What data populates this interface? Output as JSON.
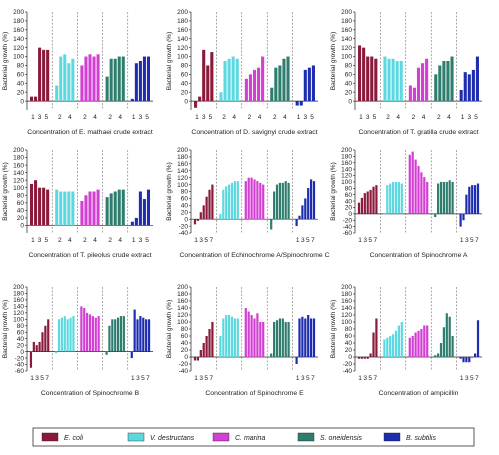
{
  "colors": {
    "E. coli": "#8B1A3A",
    "V. destructans": "#5CD9E0",
    "C. marina": "#D23FD2",
    "S. oneidensis": "#2E7D6E",
    "B. subtilis": "#1E2DB0"
  },
  "legend": [
    {
      "label": "E. coli",
      "key": "E. coli"
    },
    {
      "label": "V. destructans",
      "key": "V. destructans"
    },
    {
      "label": "C. marina",
      "key": "C. marina"
    },
    {
      "label": "S. oneidensis",
      "key": "S. oneidensis"
    },
    {
      "label": "B. subtilis",
      "key": "B. subtilis"
    }
  ],
  "chart_data": [
    {
      "type": "bar",
      "xlabel": "Concentration of E. mathaei crude extract",
      "ylabel": "Bacterial growth (%)",
      "ylim": [
        -20,
        200
      ],
      "yticks": [
        0,
        20,
        40,
        60,
        80,
        100,
        120,
        140,
        160,
        180,
        200
      ],
      "tick_labels": [
        [
          "1",
          "3",
          "5"
        ],
        [
          "2",
          "4"
        ],
        [
          "2",
          "4"
        ],
        [
          "2",
          "4"
        ],
        [
          "1",
          "3",
          "5"
        ]
      ],
      "series": [
        {
          "name": "E. coli",
          "values": [
            10,
            10,
            120,
            115,
            115
          ]
        },
        {
          "name": "V. destructans",
          "values": [
            35,
            100,
            105,
            85,
            95
          ]
        },
        {
          "name": "C. marina",
          "values": [
            80,
            100,
            105,
            100,
            105
          ]
        },
        {
          "name": "S. oneidensis",
          "values": [
            55,
            95,
            95,
            100,
            100
          ]
        },
        {
          "name": "B. subtilis",
          "values": [
            5,
            85,
            90,
            100,
            100
          ]
        }
      ]
    },
    {
      "type": "bar",
      "xlabel": "Concentration of D. savignyi crude extract",
      "ylabel": "Bacterial growth (%)",
      "ylim": [
        -20,
        200
      ],
      "yticks": [
        0,
        20,
        40,
        60,
        80,
        100,
        120,
        140,
        160,
        180,
        200
      ],
      "tick_labels": [
        [
          "1",
          "3",
          "5"
        ],
        [
          "2",
          "4"
        ],
        [
          "2",
          "4"
        ],
        [
          "2",
          "4"
        ],
        [
          "1",
          "3",
          "5"
        ]
      ],
      "series": [
        {
          "name": "E. coli",
          "values": [
            -15,
            10,
            115,
            80,
            110
          ]
        },
        {
          "name": "V. destructans",
          "values": [
            20,
            90,
            95,
            100,
            95
          ]
        },
        {
          "name": "C. marina",
          "values": [
            50,
            60,
            70,
            75,
            100
          ]
        },
        {
          "name": "S. oneidensis",
          "values": [
            30,
            75,
            80,
            95,
            100
          ]
        },
        {
          "name": "B. subtilis",
          "values": [
            -10,
            -10,
            70,
            75,
            80
          ]
        }
      ]
    },
    {
      "type": "bar",
      "xlabel": "Concentration of T. gratilla crude extract",
      "ylabel": "Bacterial growth (%)",
      "ylim": [
        -20,
        200
      ],
      "yticks": [
        0,
        20,
        40,
        60,
        80,
        100,
        120,
        140,
        160,
        180,
        200
      ],
      "tick_labels": [
        [
          "1",
          "3",
          "5"
        ],
        [
          "2",
          "4"
        ],
        [
          "2",
          "4"
        ],
        [
          "2",
          "4"
        ],
        [
          "1",
          "3",
          "5"
        ]
      ],
      "series": [
        {
          "name": "E. coli",
          "values": [
            125,
            120,
            100,
            100,
            95
          ]
        },
        {
          "name": "V. destructans",
          "values": [
            100,
            95,
            95,
            90,
            90
          ]
        },
        {
          "name": "C. marina",
          "values": [
            35,
            30,
            75,
            85,
            95
          ]
        },
        {
          "name": "S. oneidensis",
          "values": [
            60,
            80,
            90,
            90,
            100
          ]
        },
        {
          "name": "B. subtilis",
          "values": [
            25,
            65,
            60,
            70,
            100
          ]
        }
      ]
    },
    {
      "type": "bar",
      "xlabel": "Concentration of T. pileolus crude extract",
      "ylabel": "Bacterial growth (%)",
      "ylim": [
        -20,
        200
      ],
      "yticks": [
        0,
        20,
        40,
        60,
        80,
        100,
        120,
        140,
        160,
        180,
        200
      ],
      "tick_labels": [
        [
          "1",
          "3",
          "5"
        ],
        [
          "2",
          "4"
        ],
        [
          "2",
          "4"
        ],
        [
          "2",
          "4"
        ],
        [
          "1",
          "3",
          "5"
        ]
      ],
      "series": [
        {
          "name": "E. coli",
          "values": [
            110,
            120,
            100,
            100,
            95
          ]
        },
        {
          "name": "V. destructans",
          "values": [
            95,
            90,
            90,
            90,
            90
          ]
        },
        {
          "name": "C. marina",
          "values": [
            65,
            80,
            90,
            90,
            95
          ]
        },
        {
          "name": "S. oneidensis",
          "values": [
            75,
            85,
            90,
            95,
            95
          ]
        },
        {
          "name": "B. subtilis",
          "values": [
            10,
            20,
            90,
            70,
            95
          ]
        }
      ]
    },
    {
      "type": "bar",
      "xlabel": "Concentration of Echinochrome A/Spinochrome C",
      "ylabel": "Bacterial growth (%)",
      "ylim": [
        -40,
        200
      ],
      "yticks": [
        -40,
        -20,
        0,
        20,
        40,
        60,
        80,
        100,
        120,
        140,
        160,
        180,
        200
      ],
      "tick_labels": [
        [
          "1",
          "3",
          "5",
          "7"
        ],
        [],
        [],
        [],
        [
          "1",
          "3",
          "5",
          "7"
        ]
      ],
      "series": [
        {
          "name": "E. coli",
          "values": [
            -15,
            -5,
            20,
            40,
            65,
            85,
            100
          ]
        },
        {
          "name": "V. destructans",
          "values": [
            15,
            85,
            95,
            100,
            105,
            110,
            110
          ]
        },
        {
          "name": "C. marina",
          "values": [
            110,
            120,
            120,
            115,
            110,
            105,
            100
          ]
        },
        {
          "name": "S. oneidensis",
          "values": [
            -30,
            80,
            100,
            105,
            105,
            110,
            105
          ]
        },
        {
          "name": "B. subtilis",
          "values": [
            -20,
            10,
            40,
            60,
            90,
            115,
            110
          ]
        }
      ]
    },
    {
      "type": "bar",
      "xlabel": "Concentration of Spinochrome A",
      "ylabel": "Bacterial growth (%)",
      "ylim": [
        -60,
        200
      ],
      "yticks": [
        -60,
        -40,
        -20,
        0,
        20,
        40,
        60,
        80,
        100,
        120,
        140,
        160,
        180,
        200
      ],
      "tick_labels": [
        [
          "1",
          "3",
          "5",
          "7"
        ],
        [],
        [],
        [],
        [
          "1",
          "3",
          "5",
          "7"
        ]
      ],
      "series": [
        {
          "name": "E. coli",
          "values": [
            35,
            50,
            65,
            70,
            75,
            85,
            90
          ]
        },
        {
          "name": "V. destructans",
          "values": [
            0,
            90,
            95,
            100,
            100,
            100,
            95
          ]
        },
        {
          "name": "C. marina",
          "values": [
            185,
            195,
            170,
            150,
            130,
            115,
            100
          ]
        },
        {
          "name": "S. oneidensis",
          "values": [
            -10,
            95,
            100,
            100,
            100,
            105,
            100
          ]
        },
        {
          "name": "B. subtilis",
          "values": [
            -40,
            -20,
            60,
            85,
            90,
            90,
            95
          ]
        }
      ]
    },
    {
      "type": "bar",
      "xlabel": "Concentration of Spinochrome B",
      "ylabel": "Bacterial growth (%)",
      "ylim": [
        -60,
        200
      ],
      "yticks": [
        -60,
        -40,
        -20,
        0,
        20,
        40,
        60,
        80,
        100,
        120,
        140,
        160,
        180,
        200
      ],
      "tick_labels": [
        [
          "1",
          "3",
          "5",
          "7"
        ],
        [],
        [],
        [],
        [
          "1",
          "3",
          "5",
          "7"
        ]
      ],
      "series": [
        {
          "name": "E. coli",
          "values": [
            -50,
            30,
            20,
            30,
            60,
            80,
            100
          ]
        },
        {
          "name": "V. destructans",
          "values": [
            -5,
            100,
            105,
            110,
            100,
            105,
            110
          ]
        },
        {
          "name": "C. marina",
          "values": [
            140,
            135,
            120,
            115,
            110,
            105,
            110
          ]
        },
        {
          "name": "S. oneidensis",
          "values": [
            -10,
            80,
            100,
            100,
            105,
            110,
            110
          ]
        },
        {
          "name": "B. subtilis",
          "values": [
            -20,
            130,
            100,
            110,
            105,
            100,
            100
          ]
        }
      ]
    },
    {
      "type": "bar",
      "xlabel": "Concentration of Spinochrome E",
      "ylabel": "Bacterial growth (%)",
      "ylim": [
        -40,
        200
      ],
      "yticks": [
        -40,
        -20,
        0,
        20,
        40,
        60,
        80,
        100,
        120,
        140,
        160,
        180,
        200
      ],
      "tick_labels": [
        [
          "1",
          "3",
          "5",
          "7"
        ],
        [],
        [],
        [],
        [
          "1",
          "3",
          "5",
          "7"
        ]
      ],
      "series": [
        {
          "name": "E. coli",
          "values": [
            -10,
            -10,
            20,
            40,
            60,
            80,
            100
          ]
        },
        {
          "name": "V. destructans",
          "values": [
            60,
            110,
            120,
            120,
            115,
            110,
            110
          ]
        },
        {
          "name": "C. marina",
          "values": [
            140,
            130,
            120,
            110,
            125,
            100,
            100
          ]
        },
        {
          "name": "S. oneidensis",
          "values": [
            10,
            100,
            105,
            110,
            110,
            100,
            100
          ]
        },
        {
          "name": "B. subtilis",
          "values": [
            -20,
            110,
            115,
            110,
            120,
            110,
            110
          ]
        }
      ]
    },
    {
      "type": "bar",
      "xlabel": "Concentration of ampicillin",
      "ylabel": "Bacterial growth (%)",
      "ylim": [
        -40,
        200
      ],
      "yticks": [
        -40,
        -20,
        0,
        20,
        40,
        60,
        80,
        100,
        120,
        140,
        160,
        180,
        200
      ],
      "tick_labels": [
        [
          "1",
          "3",
          "5",
          "7"
        ],
        [],
        [],
        [],
        [
          "1",
          "3",
          "5",
          "7"
        ]
      ],
      "series": [
        {
          "name": "E. coli",
          "values": [
            -5,
            -5,
            -5,
            -5,
            10,
            70,
            110
          ]
        },
        {
          "name": "V. destructans",
          "values": [
            50,
            55,
            60,
            65,
            75,
            90,
            100
          ]
        },
        {
          "name": "C. marina",
          "values": [
            55,
            60,
            70,
            75,
            80,
            90,
            90
          ]
        },
        {
          "name": "S. oneidensis",
          "values": [
            5,
            10,
            40,
            85,
            125,
            115,
            60
          ]
        },
        {
          "name": "B. subtilis",
          "values": [
            -5,
            -15,
            -15,
            -15,
            0,
            10,
            105
          ]
        }
      ]
    }
  ]
}
